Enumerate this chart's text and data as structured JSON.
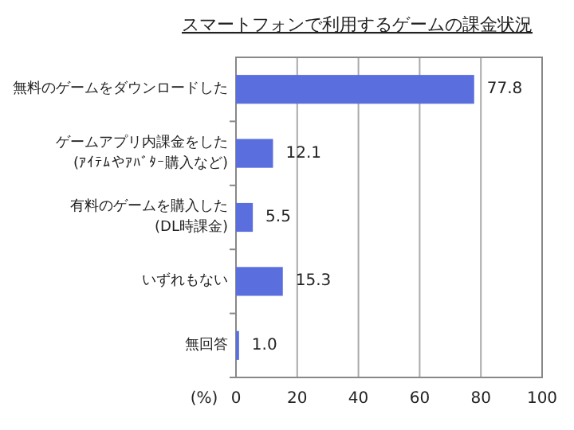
{
  "chart_data": {
    "type": "bar",
    "orientation": "horizontal",
    "title": "スマートフォンで利用するゲームの課金状況",
    "categories": [
      "無料のゲームをダウンロードした",
      "ゲームアプリ内課金をした\n(ｱｲﾃﾑやｱﾊﾞﾀｰ購入など)",
      "有料のゲームを購入した\n(DL時課金)",
      "いずれもない",
      "無回答"
    ],
    "values": [
      77.8,
      12.1,
      5.5,
      15.3,
      1.0
    ],
    "color": "#5a6ede",
    "xlabel": "(%)",
    "xlim": [
      0,
      100
    ],
    "xticks": [
      0,
      20,
      40,
      60,
      80,
      100
    ],
    "grid": "x",
    "value_labels": [
      "77.8",
      "12.1",
      "5.5",
      "15.3",
      "1.0"
    ]
  }
}
